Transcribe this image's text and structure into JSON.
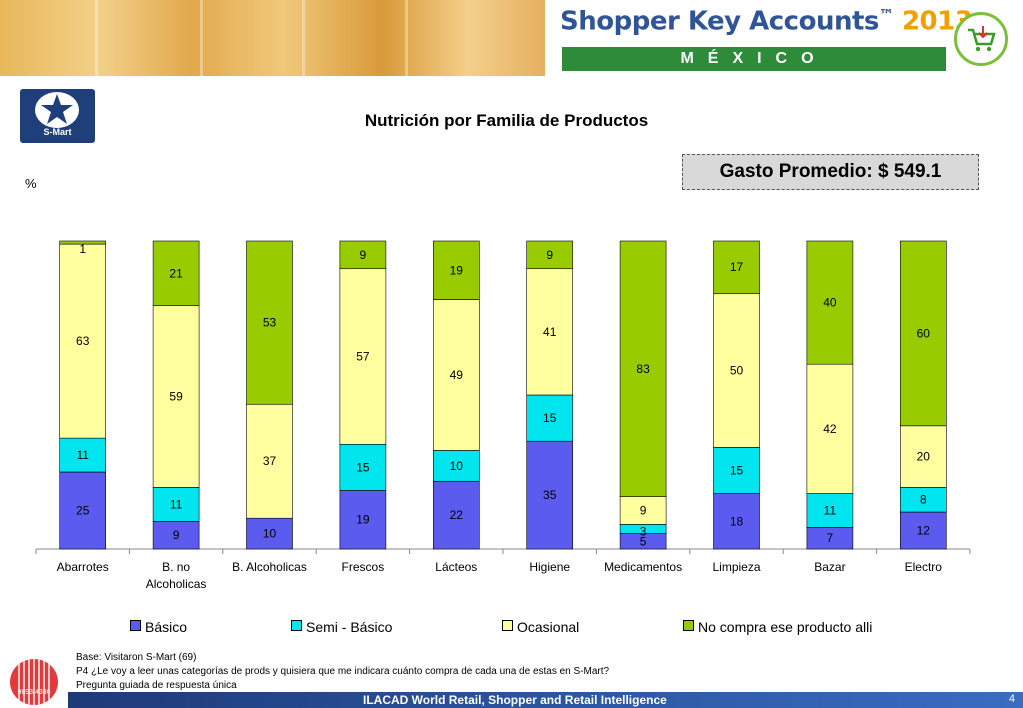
{
  "header": {
    "brand": "Shopper Key Accounts",
    "tm": "™",
    "year": "2013",
    "country": "MÉXICO"
  },
  "logo": {
    "text": "S-Mart"
  },
  "chart_data": {
    "type": "bar",
    "stacked": true,
    "title": "Nutrición por Familia de Productos",
    "ylabel": "%",
    "ylim": [
      0,
      100
    ],
    "grid": false,
    "legend_position": "bottom",
    "categories": [
      "Abarrotes",
      "B. no Alcoholicas",
      "B. Alcoholicas",
      "Frescos",
      "Lácteos",
      "Higiene",
      "Medicamentos",
      "Limpieza",
      "Bazar",
      "Electro"
    ],
    "category_lines": [
      [
        "Abarrotes"
      ],
      [
        "B. no",
        "Alcoholicas"
      ],
      [
        "B. Alcoholicas"
      ],
      [
        "Frescos"
      ],
      [
        "Lácteos"
      ],
      [
        "Higiene"
      ],
      [
        "Medicamentos"
      ],
      [
        "Limpieza"
      ],
      [
        "Bazar"
      ],
      [
        "Electro"
      ]
    ],
    "series": [
      {
        "name": "Básico",
        "color": "#5b5bf0",
        "values": [
          25,
          9,
          10,
          19,
          22,
          35,
          5,
          18,
          7,
          12
        ]
      },
      {
        "name": "Semi - Básico",
        "color": "#00e5ee",
        "values": [
          11,
          11,
          null,
          15,
          10,
          15,
          3,
          15,
          11,
          8
        ]
      },
      {
        "name": "Ocasional",
        "color": "#ffffa0",
        "values": [
          63,
          59,
          37,
          57,
          49,
          41,
          9,
          50,
          42,
          20
        ]
      },
      {
        "name": "No compra ese producto alli",
        "color": "#99cc00",
        "values": [
          1,
          21,
          53,
          9,
          19,
          9,
          83,
          17,
          40,
          60
        ]
      }
    ]
  },
  "gasto": {
    "label": "Gasto Promedio: $ 549.1"
  },
  "notes": [
    "Base: Visitaron S-Mart (69)",
    "P4 ¿Le voy a leer unas categorías de prods y quisiera que me indicara cuánto compra de cada una de estas en S-Mart?",
    "Pregunta guiada de respuesta única"
  ],
  "footer": {
    "text": "ILACAD World Retail, Shopper and Retail Intelligence",
    "page": "4",
    "logo_number": "9693 4396"
  }
}
